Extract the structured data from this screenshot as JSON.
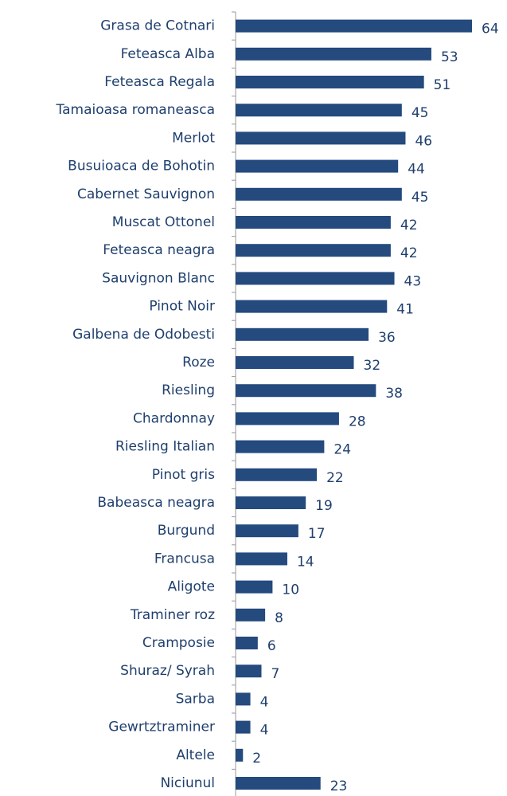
{
  "chart_data": {
    "type": "bar",
    "orientation": "horizontal",
    "color": "#244a7e",
    "categories": [
      "Grasa de Cotnari",
      "Feteasca Alba",
      "Feteasca Regala",
      "Tamaioasa romaneasca",
      "Merlot",
      "Busuioaca de Bohotin",
      "Cabernet Sauvignon",
      "Muscat Ottonel",
      "Feteasca neagra",
      "Sauvignon Blanc",
      "Pinot Noir",
      "Galbena de Odobesti",
      "Roze",
      "Riesling",
      "Chardonnay",
      "Riesling Italian",
      "Pinot gris",
      "Babeasca neagra",
      "Burgund",
      "Francusa",
      "Aligote",
      "Traminer roz",
      "Cramposie",
      "Shuraz/ Syrah",
      "Sarba",
      "Gewrtztraminer",
      "Altele",
      "Niciunul"
    ],
    "values": [
      64,
      53,
      51,
      45,
      46,
      44,
      45,
      42,
      42,
      43,
      41,
      36,
      32,
      38,
      28,
      24,
      22,
      19,
      17,
      14,
      10,
      8,
      6,
      7,
      4,
      4,
      2,
      23
    ]
  }
}
